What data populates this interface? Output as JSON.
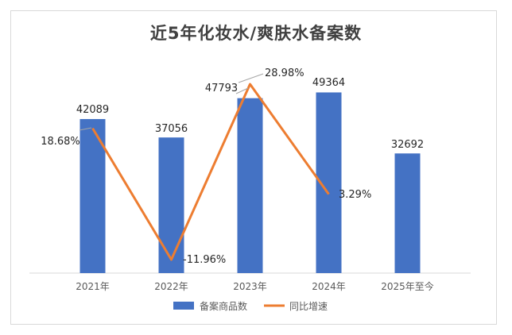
{
  "chart_data": {
    "type": "bar+line",
    "title": "近5年化妆水/爽肤水备案数",
    "categories": [
      "2021年",
      "2022年",
      "2023年",
      "2024年",
      "2025年至今"
    ],
    "series": [
      {
        "name": "备案商品数",
        "type": "bar",
        "color": "#4472C4",
        "values": [
          42089,
          37056,
          47793,
          49364,
          32692
        ],
        "labels": [
          "42089",
          "37056",
          "47793",
          "49364",
          "32692"
        ]
      },
      {
        "name": "同比增速",
        "type": "line",
        "color": "#ED7D31",
        "values": [
          18.68,
          -11.96,
          28.98,
          3.29,
          null
        ],
        "labels": [
          "18.68%",
          "-11.96%",
          "28.98%",
          "3.29%",
          ""
        ]
      }
    ],
    "legend_position": "bottom",
    "grid": false
  }
}
